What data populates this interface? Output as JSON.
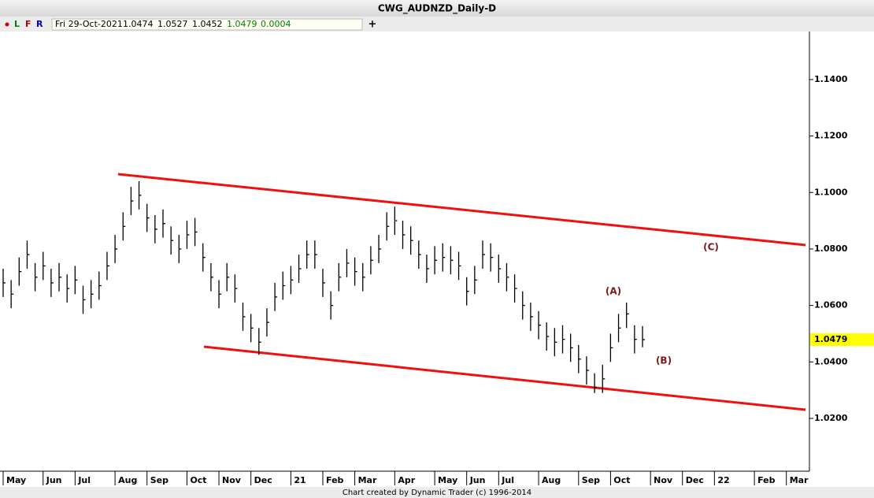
{
  "header": {
    "title": "CWG_AUDNZD_Daily-D",
    "flags": [
      "L",
      "F",
      "R"
    ]
  },
  "info": {
    "date": "Fri 29-Oct-2021",
    "open": "1.0474",
    "high": "1.0527",
    "low": "1.0452",
    "close": "1.0479",
    "change": "0.0004",
    "plus": "+"
  },
  "footer": "Chart created by Dynamic Trader  (c) 1996-2014",
  "chart_data": {
    "type": "ohlc",
    "categories": [
      "May",
      null,
      null,
      null,
      null,
      "Jun",
      null,
      null,
      null,
      "Jul",
      null,
      null,
      null,
      null,
      "Aug",
      null,
      null,
      null,
      "Sep",
      null,
      null,
      null,
      null,
      "Oct",
      null,
      null,
      null,
      "Nov",
      null,
      null,
      null,
      "Dec",
      null,
      null,
      null,
      null,
      "21",
      null,
      null,
      null,
      "Feb",
      null,
      null,
      null,
      "Mar",
      null,
      null,
      null,
      null,
      "Apr",
      null,
      null,
      null,
      null,
      "May",
      null,
      null,
      null,
      "Jun",
      null,
      null,
      null,
      "Jul",
      null,
      null,
      null,
      null,
      "Aug",
      null,
      null,
      null,
      null,
      "Sep",
      null,
      null,
      null,
      "Oct",
      null,
      null,
      null,
      null,
      "Nov",
      null,
      null,
      null,
      "Dec",
      null,
      null,
      null,
      "22",
      null,
      null,
      null,
      null,
      "Feb",
      null,
      null,
      null,
      "Mar"
    ],
    "color": "#000000",
    "high": [
      1.073,
      1.069,
      1.077,
      1.083,
      1.075,
      1.079,
      1.073,
      1.075,
      1.071,
      1.074,
      1.067,
      1.069,
      1.072,
      1.079,
      1.085,
      1.093,
      1.102,
      1.104,
      1.096,
      1.092,
      1.094,
      1.088,
      1.085,
      1.09,
      1.091,
      1.082,
      1.075,
      1.069,
      1.075,
      1.071,
      1.061,
      1.057,
      1.052,
      1.059,
      1.068,
      1.072,
      1.074,
      1.078,
      1.083,
      1.083,
      1.073,
      1.065,
      1.075,
      1.08,
      1.077,
      1.075,
      1.081,
      1.085,
      1.093,
      1.095,
      1.09,
      1.088,
      1.083,
      1.078,
      1.081,
      1.082,
      1.081,
      1.079,
      1.07,
      1.074,
      1.083,
      1.082,
      1.078,
      1.075,
      1.071,
      1.065,
      1.061,
      1.058,
      1.054,
      1.052,
      1.053,
      1.05,
      1.046,
      1.042,
      1.036,
      1.039,
      1.05,
      1.057,
      1.061,
      1.053,
      1.0527,
      null,
      null,
      null,
      null,
      null,
      null,
      null,
      null,
      null,
      null,
      null,
      null,
      null,
      null,
      null,
      null,
      null,
      null
    ],
    "low": [
      1.063,
      1.059,
      1.067,
      1.073,
      1.065,
      1.069,
      1.063,
      1.065,
      1.061,
      1.064,
      1.057,
      1.059,
      1.062,
      1.069,
      1.075,
      1.083,
      1.092,
      1.094,
      1.086,
      1.082,
      1.084,
      1.078,
      1.075,
      1.08,
      1.081,
      1.072,
      1.065,
      1.059,
      1.065,
      1.061,
      1.051,
      1.047,
      1.0425,
      1.049,
      1.058,
      1.062,
      1.064,
      1.068,
      1.073,
      1.073,
      1.063,
      1.055,
      1.065,
      1.07,
      1.067,
      1.065,
      1.071,
      1.075,
      1.083,
      1.085,
      1.08,
      1.078,
      1.073,
      1.068,
      1.071,
      1.072,
      1.071,
      1.069,
      1.06,
      1.064,
      1.073,
      1.072,
      1.068,
      1.065,
      1.061,
      1.055,
      1.051,
      1.048,
      1.044,
      1.042,
      1.043,
      1.04,
      1.036,
      1.032,
      1.029,
      1.029,
      1.04,
      1.047,
      1.052,
      1.043,
      1.0452,
      null,
      null,
      null,
      null,
      null,
      null,
      null,
      null,
      null,
      null,
      null,
      null,
      null,
      null,
      null,
      null,
      null,
      null
    ],
    "close": [
      1.068,
      1.064,
      1.072,
      1.078,
      1.07,
      1.074,
      1.068,
      1.07,
      1.066,
      1.069,
      1.062,
      1.064,
      1.067,
      1.074,
      1.08,
      1.088,
      1.097,
      1.099,
      1.091,
      1.087,
      1.089,
      1.083,
      1.08,
      1.085,
      1.086,
      1.077,
      1.07,
      1.064,
      1.07,
      1.066,
      1.056,
      1.052,
      1.047,
      1.054,
      1.063,
      1.067,
      1.069,
      1.073,
      1.078,
      1.078,
      1.068,
      1.06,
      1.07,
      1.075,
      1.072,
      1.07,
      1.076,
      1.08,
      1.088,
      1.09,
      1.085,
      1.083,
      1.078,
      1.073,
      1.076,
      1.077,
      1.076,
      1.074,
      1.065,
      1.069,
      1.078,
      1.077,
      1.073,
      1.07,
      1.066,
      1.06,
      1.056,
      1.053,
      1.049,
      1.047,
      1.048,
      1.045,
      1.041,
      1.037,
      1.031,
      1.034,
      1.045,
      1.052,
      1.057,
      1.048,
      1.0479,
      null,
      null,
      null,
      null,
      null,
      null,
      null,
      null,
      null,
      null,
      null,
      null,
      null,
      null,
      null,
      null,
      null,
      null
    ],
    "ylim": [
      1.0013,
      1.157
    ],
    "yticks": [
      {
        "value": 1.02,
        "label": "1.0200"
      },
      {
        "value": 1.04,
        "label": "1.0400"
      },
      {
        "value": 1.06,
        "label": "1.0600"
      },
      {
        "value": 1.08,
        "label": "1.0800"
      },
      {
        "value": 1.1,
        "label": "1.1000"
      },
      {
        "value": 1.12,
        "label": "1.1200"
      },
      {
        "value": 1.14,
        "label": "1.1400"
      }
    ],
    "last_price": {
      "value": 1.0479,
      "label": "1.0479"
    },
    "annotations": [
      "(A)",
      "(B)",
      "(C)"
    ]
  }
}
